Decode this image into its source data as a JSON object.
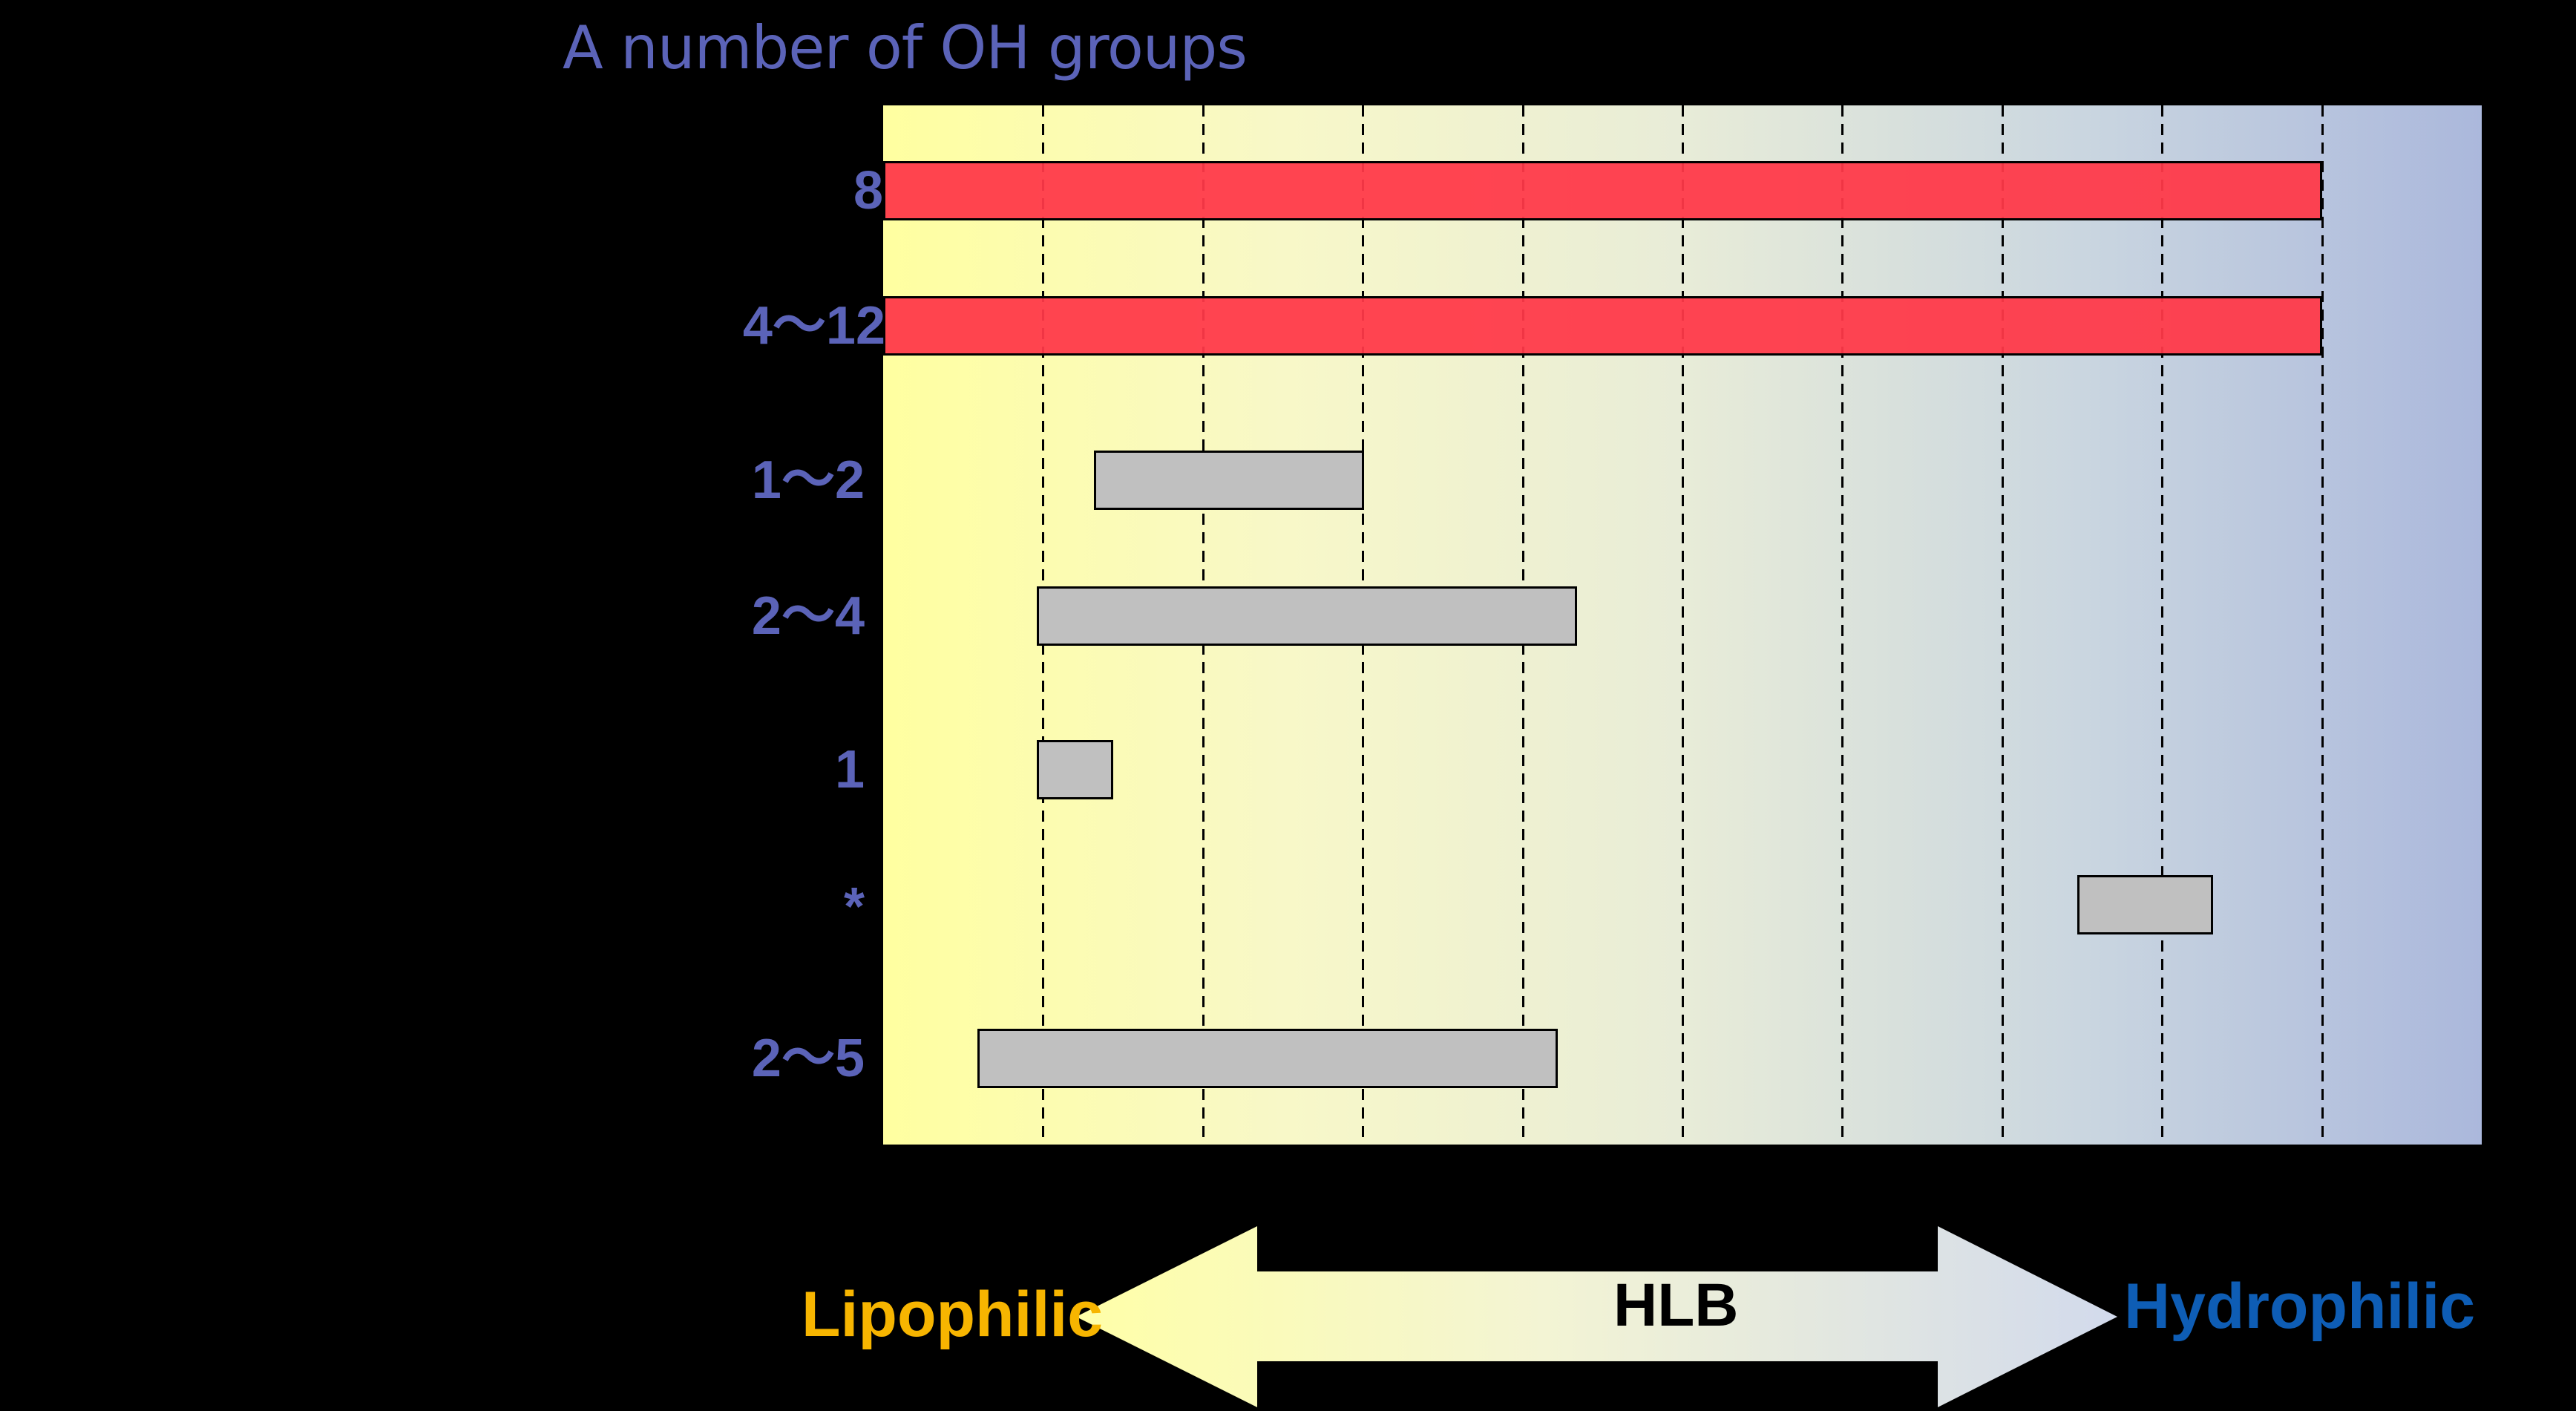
{
  "title": "A number of OH groups",
  "colors": {
    "background": "#000000",
    "label": "#5B63B8",
    "red_bar": "#FF4048",
    "gray_bar": "#C0C0C0",
    "gradient_left": "#FFFFA0",
    "gradient_right": "#ABB8DC",
    "lipophilic": "#F7B500",
    "hydrophilic": "#0E5DB5"
  },
  "rows": [
    {
      "label": "8",
      "start": 0,
      "end": 9,
      "color": "red"
    },
    {
      "label": "4〜12",
      "start": 0,
      "end": 9,
      "color": "red"
    },
    {
      "label": "1〜2",
      "start": 1.32,
      "end": 3.01,
      "color": "gray"
    },
    {
      "label": "2〜4",
      "start": 0.96,
      "end": 4.34,
      "color": "gray"
    },
    {
      "label": "1",
      "start": 0.96,
      "end": 1.44,
      "color": "gray"
    },
    {
      "label": "*",
      "start": 7.47,
      "end": 8.32,
      "color": "gray"
    },
    {
      "label": "2〜5",
      "start": 0.59,
      "end": 4.22,
      "color": "gray"
    }
  ],
  "axis": {
    "left_label": "Lipophilic",
    "center_label": "HLB",
    "right_label": "Hydrophilic"
  },
  "chart_data": {
    "type": "bar",
    "orientation": "horizontal-range",
    "title": "A number of OH groups",
    "xlabel": "HLB",
    "x_axis_left": "Lipophilic",
    "x_axis_right": "Hydrophilic",
    "ylabel": "A number of OH groups",
    "categories": [
      "8",
      "4〜12",
      "1〜2",
      "2〜4",
      "1",
      "*",
      "2〜5"
    ],
    "series": [
      {
        "name": "range_start",
        "values": [
          0,
          0,
          1.32,
          0.96,
          0.96,
          7.47,
          0.59
        ]
      },
      {
        "name": "range_end",
        "values": [
          9,
          9,
          3.01,
          4.34,
          1.44,
          8.32,
          4.22
        ]
      }
    ],
    "bar_colors": [
      "red",
      "red",
      "gray",
      "gray",
      "gray",
      "gray",
      "gray"
    ],
    "xlim": [
      0,
      10
    ],
    "grid_divisions": 10,
    "grid": "vertical dashed",
    "tick_labels_shown": false,
    "background": "horizontal gradient yellow (lipophilic) to blue (hydrophilic)"
  }
}
